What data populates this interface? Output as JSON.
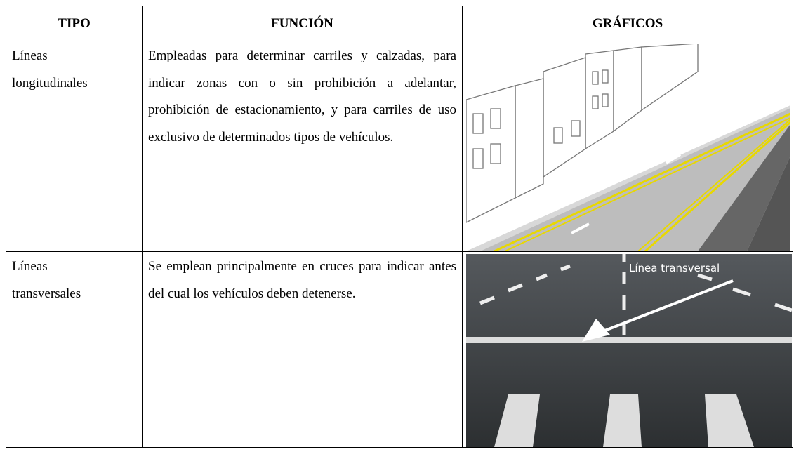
{
  "table": {
    "headers": [
      "TIPO",
      "FUNCIÓN",
      "GRÁFICOS"
    ],
    "rows": [
      {
        "tipo": "Líneas longitudinales",
        "funcion": "Empleadas para determinar carriles y calzadas, para indicar zonas con o sin prohibición a adelantar, prohibición de estacionamiento, y para carriles de uso exclusivo de determinados tipos de vehículos."
      },
      {
        "tipo": "Líneas transversales",
        "funcion": "Se emplean principalmente en cruces para indicar antes del cual los vehículos deben detenerse.",
        "image_label": "Línea transversal"
      }
    ]
  }
}
